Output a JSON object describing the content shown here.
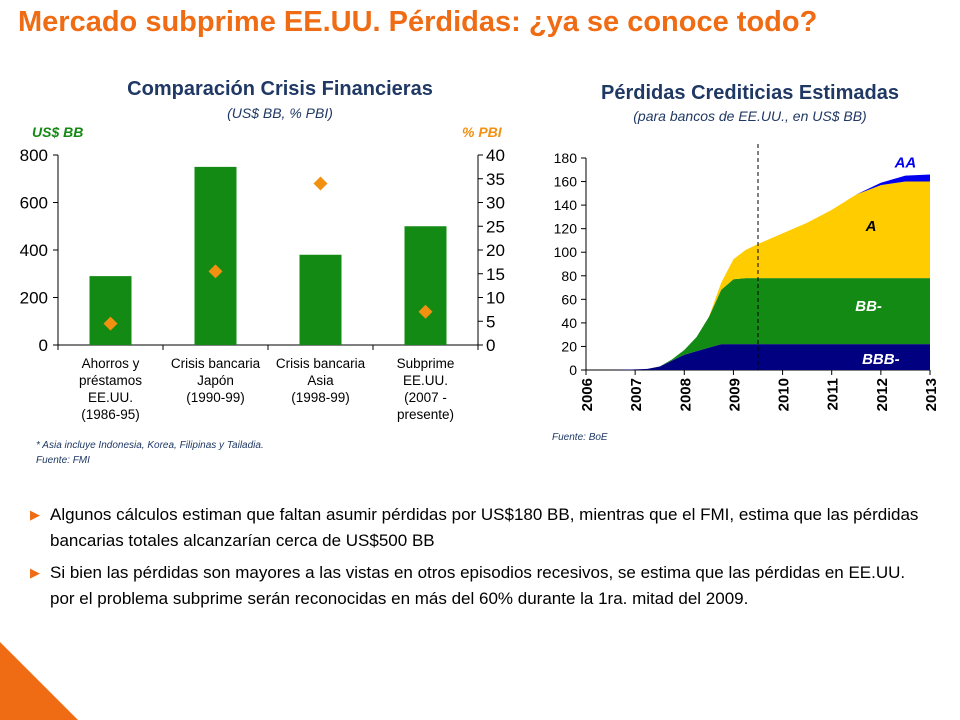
{
  "page": {
    "title": "Mercado subprime EE.UU. Pérdidas: ¿ya se conoce todo?",
    "accent_color": "#ef6c14",
    "bullet_icon": "triangle-right-icon",
    "bullets": [
      "Algunos cálculos estiman que faltan asumir pérdidas por US$180 BB, mientras que el FMI, estima que las pérdidas bancarias totales alcanzarían cerca de US$500 BB",
      "Si bien las pérdidas son mayores a las vistas en otros episodios recesivos, se estima que las pérdidas en EE.UU. por el problema subprime serán reconocidas en más del 60% durante la 1ra. mitad del 2009."
    ]
  },
  "chart_data": [
    {
      "type": "bar",
      "title": "Comparación Crisis Financieras",
      "subtitle": "(US$ BB, % PBI)",
      "ylabel": "US$ BB",
      "y2label": "% PBI",
      "ylim": [
        0,
        800
      ],
      "y2lim": [
        0,
        40
      ],
      "yticks": [
        "0",
        "200",
        "400",
        "600",
        "800"
      ],
      "y2ticks": [
        "0",
        "5",
        "10",
        "15",
        "20",
        "25",
        "30",
        "35",
        "40"
      ],
      "categories": [
        [
          "Ahorros y",
          "préstamos",
          "EE.UU.",
          "(1986-95)"
        ],
        [
          "Crisis bancaria",
          "Japón",
          "(1990-99)"
        ],
        [
          "Crisis bancaria",
          "Asia",
          "(1998-99)"
        ],
        [
          "Subprime",
          "EE.UU.",
          "(2007 -",
          "presente)"
        ]
      ],
      "series": [
        {
          "values": [
            290,
            750,
            380,
            500
          ],
          "color": "#138a13",
          "kind": "bar",
          "axis": "left"
        },
        {
          "values": [
            4.5,
            15.5,
            34,
            7
          ],
          "color": "#f29111",
          "kind": "marker",
          "axis": "right"
        }
      ],
      "footnote": "* Asia incluye Indonesia, Korea, Filipinas y Tailadia.",
      "source": "Fuente: FMI"
    },
    {
      "type": "area",
      "title": "Pérdidas Crediticias Estimadas",
      "subtitle": "(para bancos de EE.UU., en US$ BB)",
      "ylim": [
        0,
        180
      ],
      "yticks": [
        "0",
        "20",
        "40",
        "60",
        "80",
        "100",
        "120",
        "140",
        "160",
        "180"
      ],
      "xticks": [
        "2006",
        "2007",
        "2008",
        "2009",
        "2010",
        "2011",
        "2012",
        "2013"
      ],
      "x": [
        2006,
        2006.5,
        2007,
        2007.25,
        2007.5,
        2007.75,
        2008,
        2008.25,
        2008.5,
        2008.75,
        2009,
        2009.25,
        2009.5,
        2010,
        2010.5,
        2011,
        2011.5,
        2012,
        2012.5,
        2013
      ],
      "series": [
        {
          "name": "BBB-",
          "color": "#000080",
          "values": [
            0,
            0,
            0.5,
            1,
            3,
            8,
            13,
            16,
            19,
            22,
            22,
            22,
            22,
            22,
            22,
            22,
            22,
            22,
            22,
            22
          ]
        },
        {
          "name": "BB-",
          "color": "#138a13",
          "values": [
            0,
            0,
            0,
            0,
            0,
            1,
            4,
            12,
            26,
            46,
            55,
            56,
            56,
            56,
            56,
            56,
            56,
            56,
            56,
            56
          ]
        },
        {
          "name": "A",
          "color": "#ffcc00",
          "values": [
            0,
            0,
            0,
            0,
            0,
            0,
            0,
            0,
            0,
            6,
            17,
            24,
            29,
            38,
            47,
            58,
            71,
            79,
            82,
            82
          ]
        },
        {
          "name": "AA",
          "color": "#0000ee",
          "values": [
            0,
            0,
            0,
            0,
            0,
            0,
            0,
            0,
            0,
            0,
            0,
            0,
            0,
            0,
            0,
            0,
            0,
            2,
            5,
            6
          ]
        }
      ],
      "vline_x": 2009.5,
      "source": "Fuente: BoE"
    }
  ]
}
